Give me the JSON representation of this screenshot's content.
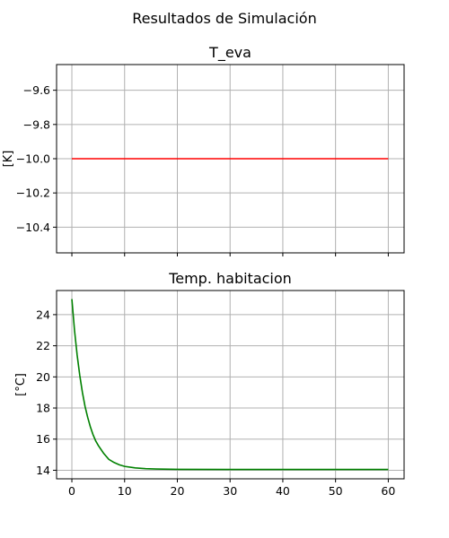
{
  "figure": {
    "title": "Resultados de Simulación"
  },
  "chart_data": [
    {
      "type": "line",
      "title": "T_eva",
      "ylabel": "[K]",
      "xlabel": "",
      "xlim": [
        -2.9,
        63
      ],
      "ylim": [
        -10.55,
        -9.45
      ],
      "xticks": [
        0,
        10,
        20,
        30,
        40,
        50,
        60
      ],
      "show_x_tick_labels": false,
      "yticks": [
        -10.4,
        -10.2,
        -10.0,
        -9.8,
        -9.6
      ],
      "ytick_labels": [
        "−10.4",
        "−10.2",
        "−10.0",
        "−9.8",
        "−9.6"
      ],
      "grid": true,
      "series": [
        {
          "color": "#ff0000",
          "x": [
            0,
            60
          ],
          "y": [
            -10.0,
            -10.0
          ]
        }
      ]
    },
    {
      "type": "line",
      "title": "Temp. habitacion",
      "ylabel": "[°C]",
      "xlabel": "",
      "xlim": [
        -2.9,
        63
      ],
      "ylim": [
        13.45,
        25.55
      ],
      "xticks": [
        0,
        10,
        20,
        30,
        40,
        50,
        60
      ],
      "xtick_labels": [
        "0",
        "10",
        "20",
        "30",
        "40",
        "50",
        "60"
      ],
      "show_x_tick_labels": true,
      "yticks": [
        14,
        16,
        18,
        20,
        22,
        24
      ],
      "ytick_labels": [
        "14",
        "16",
        "18",
        "20",
        "22",
        "24"
      ],
      "grid": true,
      "series": [
        {
          "color": "#008000",
          "x": [
            0,
            0.5,
            1,
            1.5,
            2,
            2.5,
            3,
            3.5,
            4,
            4.5,
            5,
            6,
            7,
            8,
            9,
            10,
            12,
            14,
            16,
            20,
            30,
            40,
            50,
            60
          ],
          "y": [
            25.0,
            23.0,
            21.4,
            20.1,
            19.0,
            18.1,
            17.4,
            16.8,
            16.3,
            15.9,
            15.6,
            15.1,
            14.7,
            14.5,
            14.35,
            14.25,
            14.15,
            14.1,
            14.08,
            14.06,
            14.05,
            14.05,
            14.05,
            14.05
          ]
        }
      ]
    }
  ]
}
